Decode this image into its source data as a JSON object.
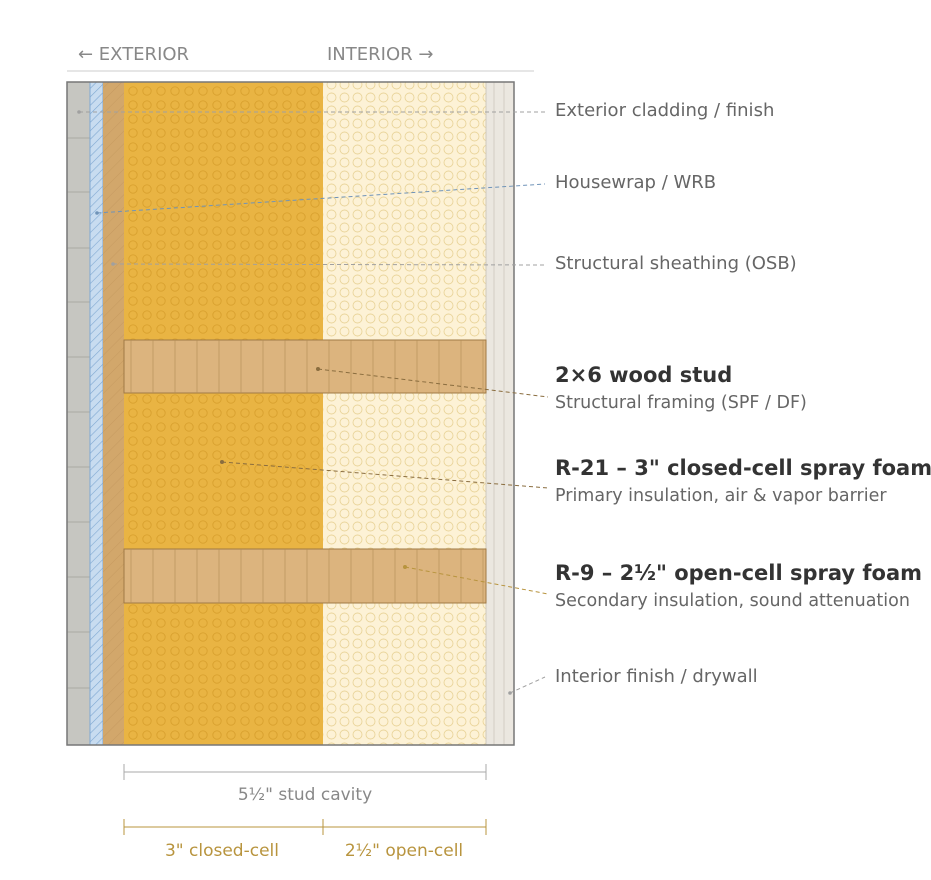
{
  "header": {
    "exterior_label": "← EXTERIOR",
    "interior_label": "INTERIOR →"
  },
  "layers": {
    "cladding": "Exterior cladding / finish",
    "housewrap": "Housewrap / WRB",
    "sheathing": "Structural sheathing (OSB)",
    "drywall": "Interior finish / drywall"
  },
  "callouts": {
    "stud": {
      "title": "2×6 wood stud",
      "subtitle": "Structural framing (SPF / DF)"
    },
    "closed_cell": {
      "title": "R-21 – 3\" closed-cell spray foam",
      "subtitle": "Primary insulation, air & vapor barrier"
    },
    "open_cell": {
      "title": "R-9 – 2½\" open-cell spray foam",
      "subtitle": "Secondary insulation, sound attenuation"
    }
  },
  "dimensions": {
    "stud_cavity": "5½\" stud cavity",
    "closed_cell": "3\" closed-cell",
    "open_cell": "2½\" open-cell"
  },
  "colors": {
    "closed_cell_foam": "#e9b443",
    "open_cell_foam": "#fdf2d6",
    "stud_wood": "#dcb47e",
    "sheathing": "#d2a76b",
    "housewrap": "#c8dcf0",
    "cladding": "#c6c6c1",
    "drywall": "#ebe7e0",
    "gold_dimension": "#b8943e"
  }
}
